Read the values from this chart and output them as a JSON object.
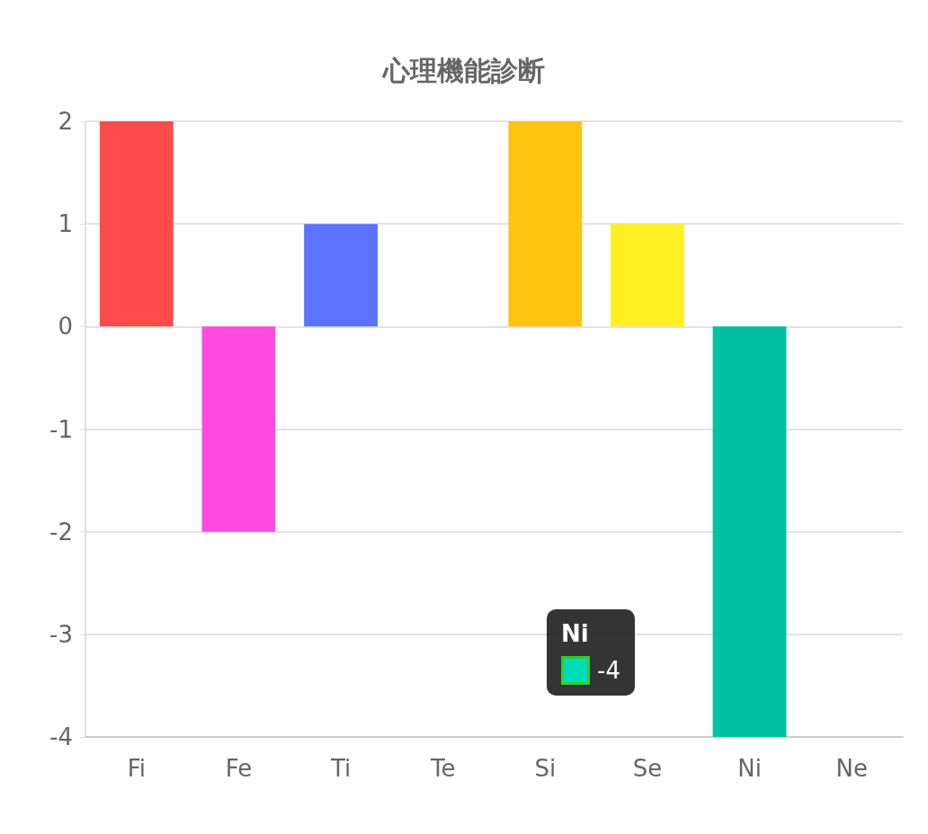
{
  "chart_data": {
    "type": "bar",
    "title": "心理機能診断",
    "categories": [
      "Fi",
      "Fe",
      "Ti",
      "Te",
      "Si",
      "Se",
      "Ni",
      "Ne"
    ],
    "values": [
      2,
      -2,
      1,
      0,
      2,
      1,
      -4,
      0
    ],
    "colors": [
      "#ff4b4b",
      "#ff4be0",
      "#5b73ff",
      "#888888",
      "#ffc312",
      "#fff023",
      "#00c2a2",
      "#888888"
    ],
    "ylim": [
      -4,
      2
    ],
    "yticks": [
      -4,
      -3,
      -2,
      -1,
      0,
      1,
      2
    ],
    "grid": "y",
    "annotations": [
      "Ni",
      "-4"
    ]
  }
}
